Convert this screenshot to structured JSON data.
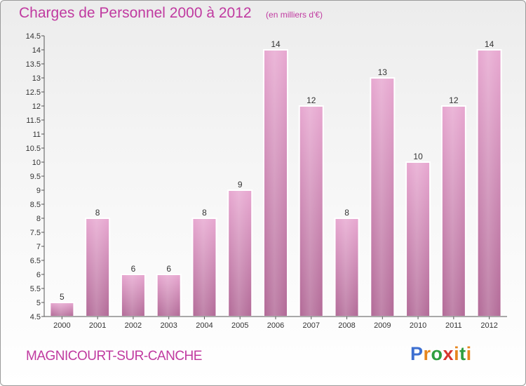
{
  "chart_data": {
    "type": "bar",
    "title": "Charges de Personnel 2000 à 2012",
    "subtitle": "(en milliers d'€)",
    "categories": [
      "2000",
      "2001",
      "2002",
      "2003",
      "2004",
      "2005",
      "2006",
      "2007",
      "2008",
      "2009",
      "2010",
      "2011",
      "2012"
    ],
    "values": [
      5,
      8,
      6,
      6,
      8,
      9,
      14,
      12,
      8,
      13,
      10,
      12,
      14
    ],
    "ylim": [
      4.5,
      14.5
    ],
    "yticks": [
      "4.5",
      "5",
      "5.5",
      "6",
      "6.5",
      "7",
      "7.5",
      "8",
      "8.5",
      "9",
      "9.5",
      "10",
      "10.5",
      "11",
      "11.5",
      "12",
      "12.5",
      "13",
      "13.5",
      "14",
      "14.5"
    ],
    "grid": false,
    "legend": "none",
    "bar_color": "#d98fbe"
  },
  "footer": {
    "place": "MAGNICOURT-SUR-CANCHE",
    "logo_letters": [
      "P",
      "r",
      "o",
      "x",
      "i",
      "t",
      "i"
    ],
    "logo_colors": [
      "#3d6fd1",
      "#e6861e",
      "#2f9e3f",
      "#d8362f",
      "#e6861e",
      "#2f9e3f",
      "#e6861e"
    ]
  }
}
